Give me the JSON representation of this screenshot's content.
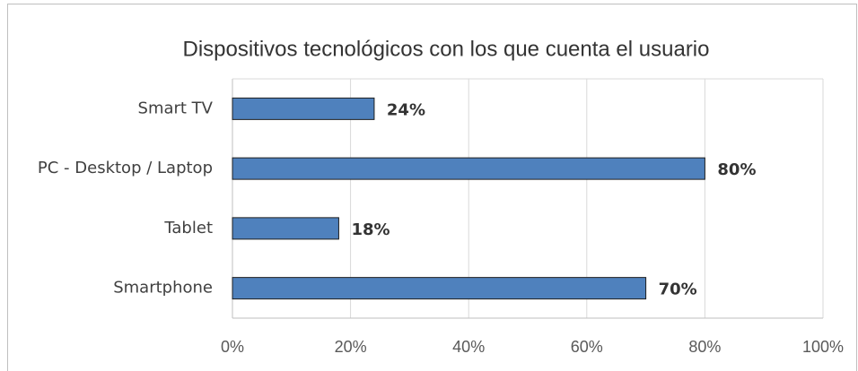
{
  "chart_data": {
    "type": "bar",
    "orientation": "horizontal",
    "title": "Dispositivos tecnológicos con los que cuenta el usuario",
    "categories": [
      "Smart TV",
      "PC - Desktop / Laptop",
      "Tablet",
      "Smartphone"
    ],
    "values": [
      24,
      80,
      18,
      70
    ],
    "value_labels": [
      "24%",
      "80%",
      "18%",
      "70%"
    ],
    "color": "#4f81bd",
    "xlim": [
      0,
      100
    ],
    "xticks": [
      {
        "value": 0,
        "label": "0%"
      },
      {
        "value": 20,
        "label": "20%"
      },
      {
        "value": 40,
        "label": "40%"
      },
      {
        "value": 60,
        "label": "60%"
      },
      {
        "value": 80,
        "label": "80%"
      },
      {
        "value": 100,
        "label": "100%"
      }
    ],
    "grid": true
  }
}
